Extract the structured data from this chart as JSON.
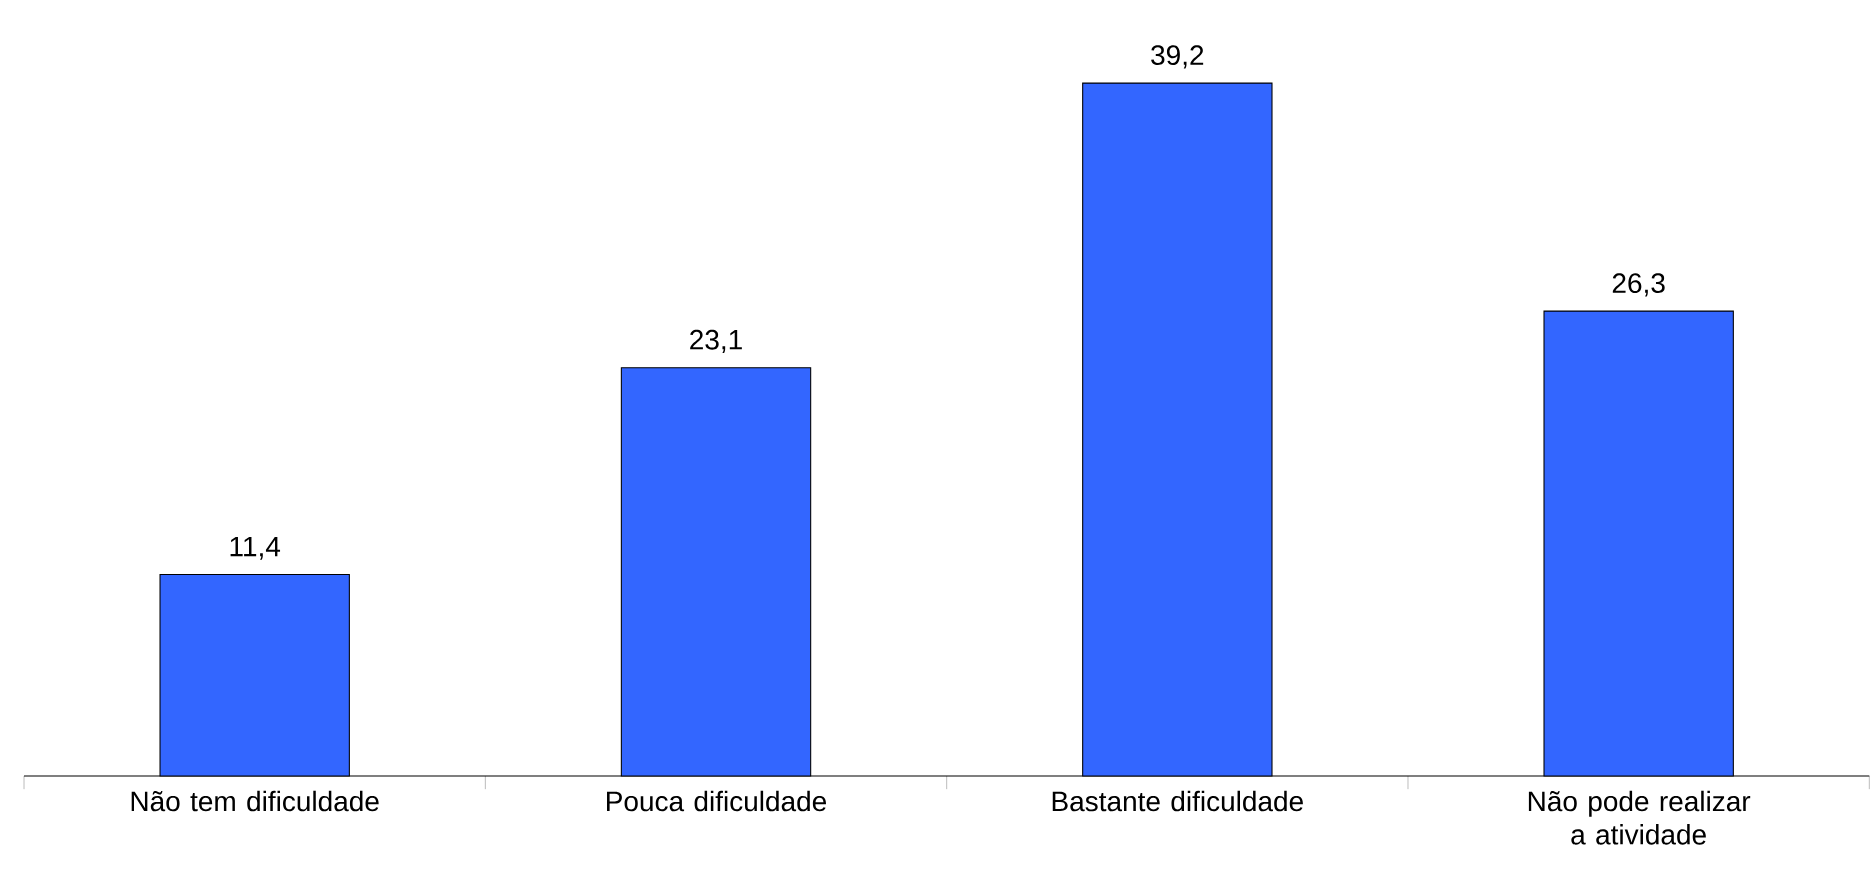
{
  "chart_data": {
    "type": "bar",
    "categories": [
      "Não tem dificuldade",
      "Pouca dificuldade",
      "Bastante dificuldade",
      "Não pode realizar a atividade"
    ],
    "values": [
      11.4,
      23.1,
      39.2,
      26.3
    ],
    "value_labels": [
      "11,4",
      "23,1",
      "39,2",
      "26,3"
    ],
    "color": "#3366ff"
  }
}
